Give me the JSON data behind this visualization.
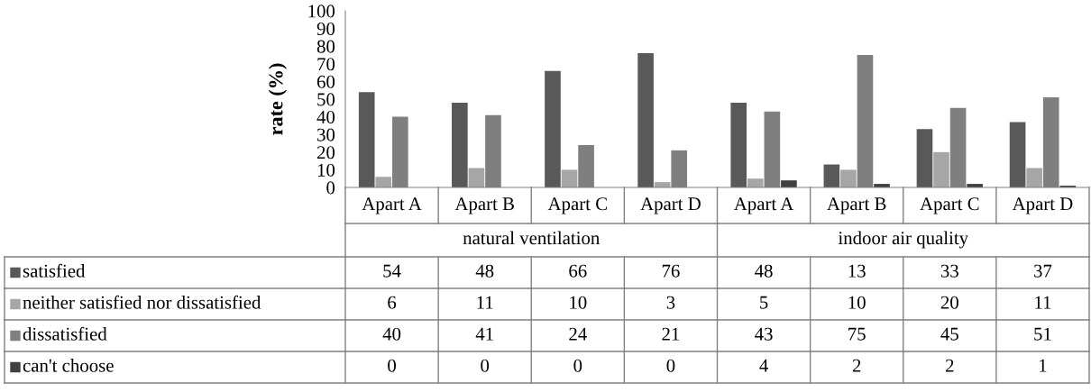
{
  "chart_data": {
    "type": "bar",
    "ylabel": "rate (%)",
    "categories": [
      "Apart A",
      "Apart B",
      "Apart C",
      "Apart D",
      "Apart A",
      "Apart B",
      "Apart C",
      "Apart D"
    ],
    "annotations": [
      "natural ventilation",
      "indoor air quality"
    ],
    "series": [
      {
        "name": "satisfied",
        "color": "#595959",
        "values": [
          54,
          48,
          66,
          76,
          48,
          13,
          33,
          37
        ]
      },
      {
        "name": "neither satisfied nor dissatisfied",
        "color": "#a6a6a6",
        "values": [
          6,
          11,
          10,
          3,
          5,
          10,
          20,
          11
        ]
      },
      {
        "name": "dissatisfied",
        "color": "#7f7f7f",
        "values": [
          40,
          41,
          24,
          21,
          43,
          75,
          45,
          51
        ]
      },
      {
        "name": "can't choose",
        "color": "#404040",
        "values": [
          0,
          0,
          0,
          0,
          4,
          2,
          2,
          1
        ]
      }
    ],
    "ylim": [
      0,
      100
    ],
    "yticks": [
      0,
      10,
      20,
      30,
      40,
      50,
      60,
      70,
      80,
      90,
      100
    ],
    "grid": false,
    "legend": "bottom",
    "data_labels": true
  }
}
